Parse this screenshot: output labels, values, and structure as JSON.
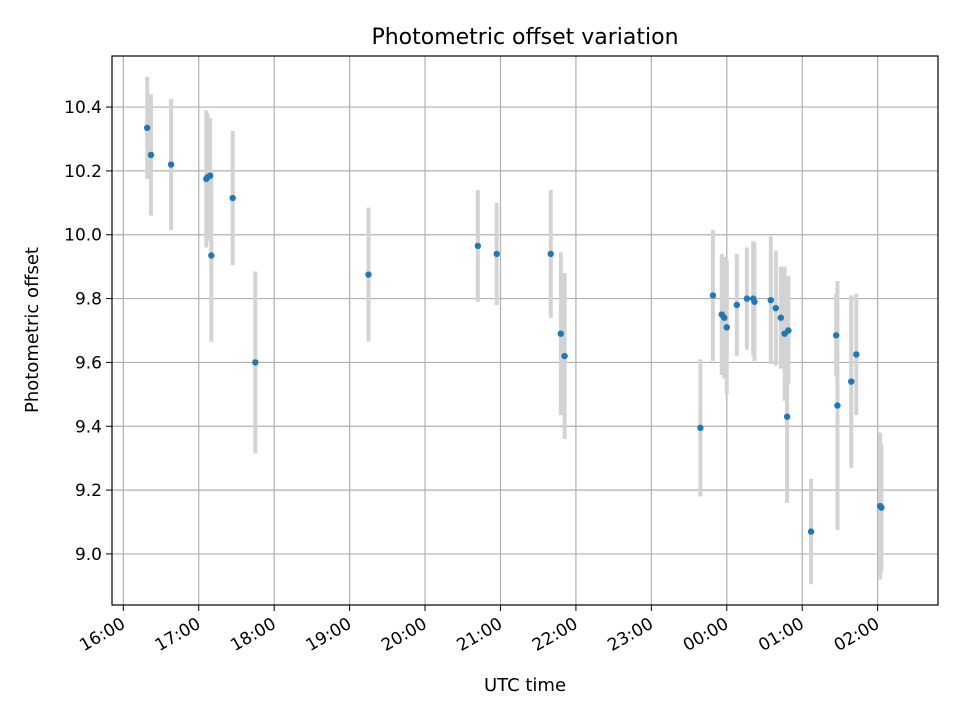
{
  "chart_data": {
    "type": "scatter",
    "title": "Photometric offset variation",
    "xlabel": "UTC time",
    "ylabel": "Photometric offset",
    "grid": true,
    "x_is_time": true,
    "x_ticks": [
      "16:00",
      "17:00",
      "18:00",
      "19:00",
      "20:00",
      "21:00",
      "22:00",
      "23:00",
      "00:00",
      "01:00",
      "02:00"
    ],
    "y_ticks": [
      "9.0",
      "9.2",
      "9.4",
      "9.6",
      "9.8",
      "10.0",
      "10.2",
      "10.4"
    ],
    "ylim": [
      8.84,
      10.56
    ],
    "colors": {
      "point": "#1f77b4",
      "errorbar": "#d3d3d3",
      "grid": "#b0b0b0"
    },
    "points": [
      {
        "t": "16:19",
        "y": 10.335,
        "err": 0.16
      },
      {
        "t": "16:22",
        "y": 10.25,
        "err": 0.19
      },
      {
        "t": "16:38",
        "y": 10.22,
        "err": 0.205
      },
      {
        "t": "17:06",
        "y": 10.175,
        "err": 0.215
      },
      {
        "t": "17:07",
        "y": 10.18,
        "err": 0.2
      },
      {
        "t": "17:09",
        "y": 10.185,
        "err": 0.18
      },
      {
        "t": "17:10",
        "y": 9.935,
        "err": 0.27
      },
      {
        "t": "17:27",
        "y": 10.115,
        "err": 0.21
      },
      {
        "t": "17:45",
        "y": 9.6,
        "err": 0.285
      },
      {
        "t": "19:15",
        "y": 9.875,
        "err": 0.21
      },
      {
        "t": "20:42",
        "y": 9.965,
        "err": 0.175
      },
      {
        "t": "20:57",
        "y": 9.94,
        "err": 0.16
      },
      {
        "t": "21:40",
        "y": 9.94,
        "err": 0.2
      },
      {
        "t": "21:48",
        "y": 9.69,
        "err": 0.255
      },
      {
        "t": "21:51",
        "y": 9.62,
        "err": 0.26
      },
      {
        "t": "23:39",
        "y": 9.395,
        "err": 0.215
      },
      {
        "t": "23:49",
        "y": 9.81,
        "err": 0.205
      },
      {
        "t": "23:56",
        "y": 9.75,
        "err": 0.19
      },
      {
        "t": "23:58",
        "y": 9.74,
        "err": 0.19
      },
      {
        "t": "00:00",
        "y": 9.71,
        "err": 0.21
      },
      {
        "t": "00:08",
        "y": 9.78,
        "err": 0.16
      },
      {
        "t": "00:16",
        "y": 9.8,
        "err": 0.16
      },
      {
        "t": "00:21",
        "y": 9.8,
        "err": 0.18
      },
      {
        "t": "00:22",
        "y": 9.79,
        "err": 0.185
      },
      {
        "t": "00:35",
        "y": 9.795,
        "err": 0.2
      },
      {
        "t": "00:39",
        "y": 9.77,
        "err": 0.18
      },
      {
        "t": "00:43",
        "y": 9.74,
        "err": 0.16
      },
      {
        "t": "00:46",
        "y": 9.69,
        "err": 0.21
      },
      {
        "t": "00:48",
        "y": 9.43,
        "err": 0.27
      },
      {
        "t": "00:49",
        "y": 9.7,
        "err": 0.17
      },
      {
        "t": "01:07",
        "y": 9.07,
        "err": 0.165
      },
      {
        "t": "01:27",
        "y": 9.685,
        "err": 0.13
      },
      {
        "t": "01:28",
        "y": 9.465,
        "err": 0.39
      },
      {
        "t": "01:39",
        "y": 9.54,
        "err": 0.27
      },
      {
        "t": "01:43",
        "y": 9.625,
        "err": 0.19
      },
      {
        "t": "02:02",
        "y": 9.15,
        "err": 0.23
      },
      {
        "t": "02:03",
        "y": 9.145,
        "err": 0.2
      }
    ]
  }
}
